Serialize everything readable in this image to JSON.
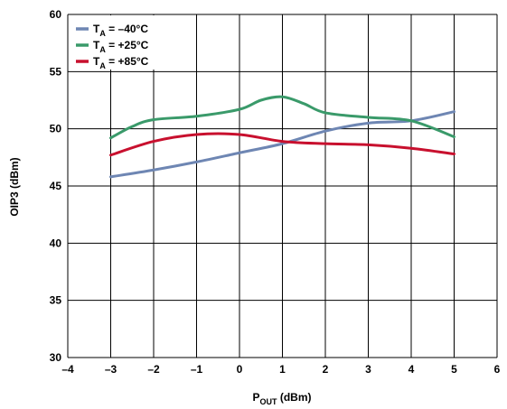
{
  "chart_data": {
    "type": "line",
    "title": "",
    "xlabel_main": "P",
    "xlabel_sub": "OUT",
    "xlabel_rest": " (dBm)",
    "ylabel": "OIP3 (dBm)",
    "xlim": [
      -4,
      6
    ],
    "ylim": [
      30,
      60
    ],
    "x_ticks": [
      "–4",
      "–3",
      "–2",
      "–1",
      "0",
      "1",
      "2",
      "3",
      "4",
      "5",
      "6"
    ],
    "y_ticks": [
      "30",
      "35",
      "40",
      "45",
      "50",
      "55",
      "60"
    ],
    "grid": true,
    "legend_position": "top-left",
    "series": [
      {
        "name_main": "T",
        "name_sub": "A",
        "name_rest": " = –40°C",
        "color": "#6e86b3",
        "x": [
          -3,
          -2,
          -1,
          0,
          1,
          2,
          3,
          4,
          5
        ],
        "y": [
          45.8,
          46.4,
          47.1,
          47.9,
          48.7,
          49.8,
          50.5,
          50.7,
          51.5
        ]
      },
      {
        "name_main": "T",
        "name_sub": "A",
        "name_rest": " = +25°C",
        "color": "#3a9a6a",
        "x": [
          -3,
          -2.5,
          -2,
          -1,
          0,
          0.5,
          1,
          1.5,
          2,
          3,
          4,
          5
        ],
        "y": [
          49.2,
          50.2,
          50.8,
          51.1,
          51.7,
          52.5,
          52.8,
          52.2,
          51.4,
          51.0,
          50.7,
          49.3
        ]
      },
      {
        "name_main": "T",
        "name_sub": "A",
        "name_rest": " = +85°C",
        "color": "#c8102e",
        "x": [
          -3,
          -2,
          -1,
          0,
          1,
          2,
          3,
          4,
          5
        ],
        "y": [
          47.7,
          48.9,
          49.5,
          49.5,
          48.9,
          48.7,
          48.6,
          48.3,
          47.8
        ]
      }
    ]
  }
}
